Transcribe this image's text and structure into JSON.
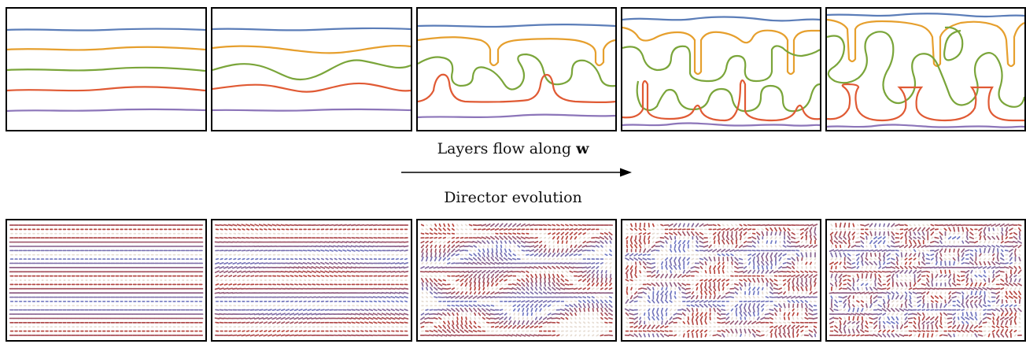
{
  "captions": {
    "top_prefix": "Layers flow along ",
    "top_vector": "w",
    "bottom": "Director evolution"
  },
  "colors": {
    "blue": "#5b7db8",
    "orange": "#e69f2d",
    "green": "#7aa53a",
    "red": "#e05a34",
    "purple": "#8c75b9",
    "frame": "#000000"
  },
  "layers": [
    "blue",
    "orange",
    "green",
    "red",
    "purple"
  ],
  "stages": [
    {
      "index": 1,
      "description": "nearly flat layers"
    },
    {
      "index": 2,
      "description": "gentle undulation"
    },
    {
      "index": 3,
      "description": "finger formation"
    },
    {
      "index": 4,
      "description": "deep fingering"
    },
    {
      "index": 5,
      "description": "bulb-like fingers"
    }
  ]
}
